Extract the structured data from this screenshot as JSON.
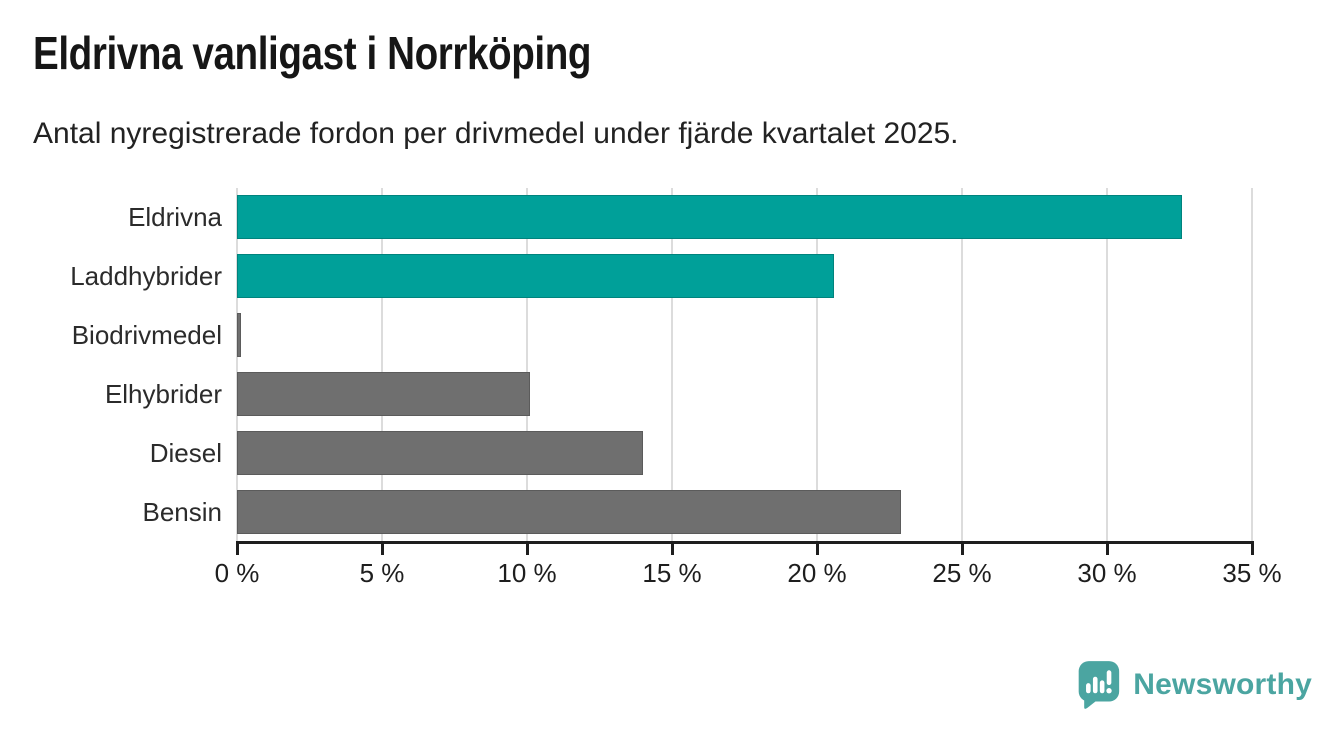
{
  "title": "Eldrivna vanligast i Norrköping",
  "subtitle": "Antal nyregistrerade fordon per drivmedel under fjärde kvartalet 2025.",
  "colors": {
    "accent_teal": "#00A099",
    "muted_gray": "#6F6F6F",
    "gridline": "#DCDCDC",
    "axis": "#1E1E1E",
    "title_text": "#161616",
    "logo_teal": "#4BA5A1",
    "background": "#FFFFFF"
  },
  "chart_data": {
    "type": "bar",
    "orientation": "horizontal",
    "title": "Eldrivna vanligast i Norrköping",
    "subtitle": "Antal nyregistrerade fordon per drivmedel under fjärde kvartalet 2025.",
    "categories": [
      "Eldrivna",
      "Laddhybrider",
      "Biodrivmedel",
      "Elhybrider",
      "Diesel",
      "Bensin"
    ],
    "values": [
      32.6,
      20.6,
      0.15,
      10.1,
      14.0,
      22.9
    ],
    "unit": "%",
    "bar_colors": [
      "#00A099",
      "#00A099",
      "#6F6F6F",
      "#6F6F6F",
      "#6F6F6F",
      "#6F6F6F"
    ],
    "xlabel": "",
    "ylabel": "",
    "xlim": [
      0,
      35
    ],
    "xticks": [
      0,
      5,
      10,
      15,
      20,
      25,
      30,
      35
    ],
    "xtick_labels": [
      "0 %",
      "5 %",
      "10 %",
      "15 %",
      "20 %",
      "25 %",
      "30 %",
      "35 %"
    ],
    "grid": true,
    "legend": false
  },
  "footer": {
    "brand": "Newsworthy",
    "logo_icon": "bar-chart-speech-bubble-icon"
  }
}
